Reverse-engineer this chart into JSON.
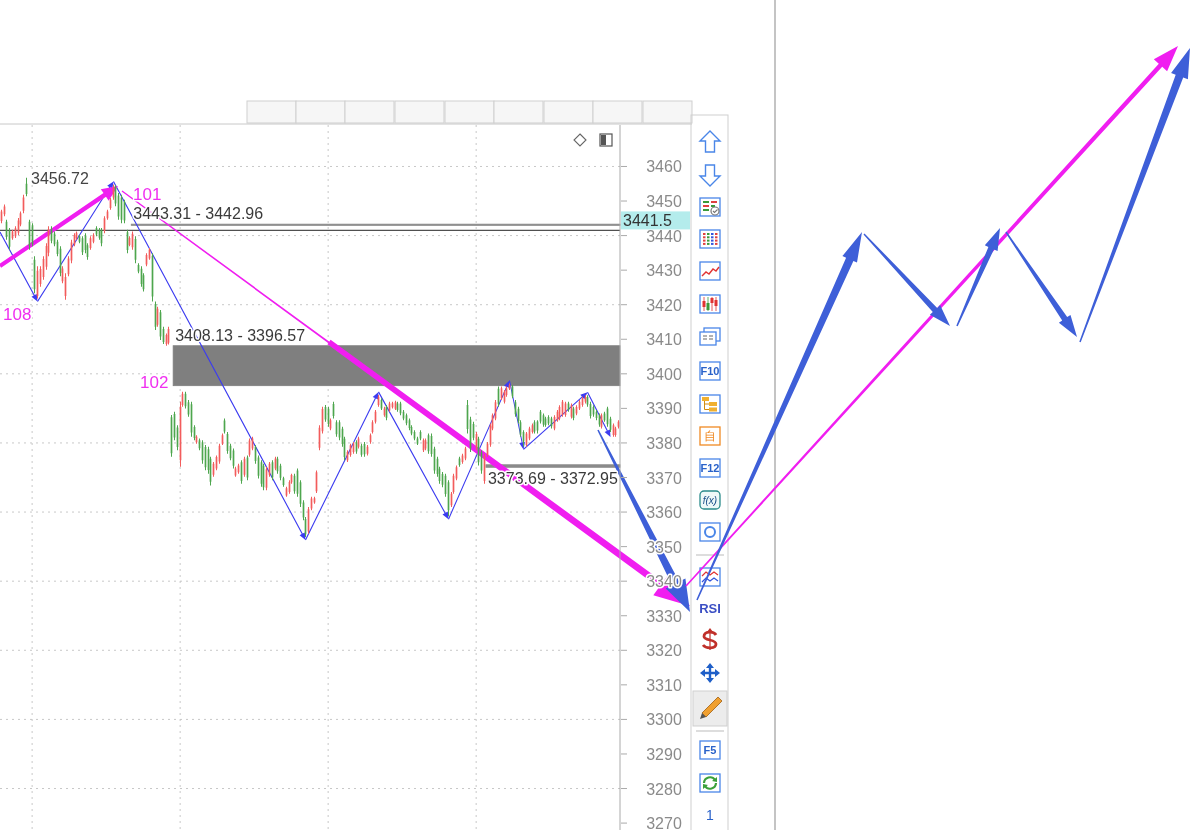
{
  "chart_data": {
    "type": "candlestick",
    "categories": [
      null,
      null,
      null,
      null,
      null,
      null,
      null,
      null,
      null,
      null,
      null,
      null,
      null,
      null,
      null,
      null,
      null,
      null,
      null,
      null,
      null,
      null,
      null,
      null,
      null,
      null,
      null,
      null,
      null,
      null,
      null,
      null,
      null,
      null,
      null,
      null,
      null,
      null,
      null,
      null,
      null,
      null,
      null,
      null,
      null,
      null,
      null,
      null,
      null,
      null,
      null,
      null,
      null,
      null,
      null,
      null,
      null,
      null,
      null,
      null,
      null,
      null,
      null,
      null,
      null,
      null,
      null,
      null,
      null,
      null,
      null,
      null,
      null,
      null,
      null,
      null,
      null,
      null,
      null,
      null,
      null,
      null,
      null,
      null,
      null,
      null,
      null,
      null,
      null,
      null,
      null,
      null,
      null,
      null,
      null,
      null,
      null,
      null,
      null,
      null,
      null,
      null,
      null,
      null,
      null,
      null,
      null,
      null,
      null,
      null,
      null,
      null,
      null,
      null,
      null,
      null,
      null,
      null,
      null,
      null,
      null,
      null,
      null,
      null,
      null,
      null,
      null,
      null,
      null,
      null,
      null,
      null,
      null,
      null,
      null,
      null,
      null,
      null,
      null,
      null,
      null,
      null,
      null,
      null,
      null,
      null,
      null,
      null,
      null,
      null,
      null,
      null,
      null,
      null,
      null,
      null,
      null,
      null,
      null,
      null,
      null,
      null,
      null,
      null,
      null,
      null,
      null,
      null,
      null,
      null,
      null,
      null,
      null,
      null,
      null,
      null,
      null,
      null,
      null,
      null,
      null,
      null,
      null,
      null,
      null,
      null,
      null,
      null,
      null,
      null,
      null,
      null,
      null,
      null,
      null,
      null,
      null,
      null,
      null,
      null,
      null,
      null,
      null,
      null,
      null,
      null,
      null,
      null,
      null,
      null,
      null,
      null,
      null,
      null,
      null,
      null,
      null,
      null,
      null,
      null,
      null,
      null
    ],
    "ohlc": [
      [
        3444.2,
        3447.5,
        3443.6,
        3447.0
      ],
      [
        3446.2,
        3449.0,
        3445.6,
        3448.4
      ],
      [
        3444.0,
        3444.6,
        3438.8,
        3439.6
      ],
      [
        3441.5,
        3442.2,
        3435.9,
        3436.8
      ],
      [
        3439.2,
        3441.7,
        3438.8,
        3441.2
      ],
      [
        3439.8,
        3442.7,
        3439.3,
        3442.1
      ],
      [
        3440.8,
        3445.1,
        3440.2,
        3444.4
      ],
      [
        3443.2,
        3447.0,
        3442.7,
        3446.5
      ],
      [
        3447.2,
        3451.8,
        3446.5,
        3451.0
      ],
      [
        3455.0,
        3456.72,
        3451.4,
        3452.0
      ],
      [
        3444.0,
        3444.6,
        3435.9,
        3437.0
      ],
      [
        3443.0,
        3443.6,
        3436.9,
        3437.6
      ],
      [
        3433.0,
        3434.0,
        3423.3,
        3424.5
      ],
      [
        3422.5,
        3431.1,
        3421.8,
        3429.8
      ],
      [
        3426.0,
        3431.1,
        3425.2,
        3430.3
      ],
      [
        3428.0,
        3434.0,
        3427.2,
        3433.2
      ],
      [
        3431.0,
        3437.8,
        3430.1,
        3437.0
      ],
      [
        3435.0,
        3442.7,
        3434.0,
        3441.8
      ],
      [
        3442.0,
        3442.7,
        3437.8,
        3438.5
      ],
      [
        3440.6,
        3441.2,
        3436.9,
        3437.5
      ],
      [
        3438.2,
        3438.8,
        3434.0,
        3434.7
      ],
      [
        3436.2,
        3436.9,
        3428.2,
        3429.2
      ],
      [
        3426.8,
        3431.1,
        3426.2,
        3430.5
      ],
      [
        3422.5,
        3429.1,
        3421.4,
        3428.0
      ],
      [
        3428.8,
        3434.0,
        3428.2,
        3433.4
      ],
      [
        3432.8,
        3438.8,
        3432.0,
        3438.0
      ],
      [
        3437.4,
        3440.7,
        3436.9,
        3440.2
      ],
      [
        3439.2,
        3441.2,
        3438.8,
        3440.8
      ],
      [
        3439.8,
        3440.2,
        3437.8,
        3438.2
      ],
      [
        3439.2,
        3439.8,
        3434.4,
        3435.2
      ],
      [
        3440.0,
        3440.7,
        3434.9,
        3435.8
      ],
      [
        3437.2,
        3437.8,
        3433.0,
        3433.8
      ],
      [
        3436.4,
        3439.8,
        3435.9,
        3439.2
      ],
      [
        3438.2,
        3440.7,
        3437.8,
        3440.2
      ],
      [
        3442.2,
        3442.7,
        3439.8,
        3440.3
      ],
      [
        3441.7,
        3442.2,
        3438.8,
        3439.4
      ],
      [
        3441.5,
        3442.2,
        3436.9,
        3437.8
      ],
      [
        3441.3,
        3445.6,
        3440.7,
        3445.0
      ],
      [
        3445.0,
        3447.5,
        3444.6,
        3447.0
      ],
      [
        3448.0,
        3450.9,
        3447.5,
        3450.4
      ],
      [
        3451.0,
        3454.8,
        3450.4,
        3454.0
      ],
      [
        3454.2,
        3454.6,
        3448.5,
        3449.3
      ],
      [
        3451.6,
        3452.3,
        3444.6,
        3445.5
      ],
      [
        3451.0,
        3451.8,
        3443.6,
        3444.6
      ],
      [
        3449.8,
        3450.4,
        3443.6,
        3444.4
      ],
      [
        3441.0,
        3441.7,
        3434.9,
        3435.8
      ],
      [
        3437.3,
        3439.8,
        3436.9,
        3439.3
      ],
      [
        3436.6,
        3441.2,
        3435.9,
        3440.5
      ],
      [
        3439.0,
        3439.8,
        3432.0,
        3433.0
      ],
      [
        3431.5,
        3432.0,
        3429.1,
        3429.6
      ],
      [
        3430.4,
        3431.1,
        3425.2,
        3426.0
      ],
      [
        3428.5,
        3429.1,
        3423.8,
        3424.5
      ],
      [
        3431.6,
        3434.9,
        3431.1,
        3434.4
      ],
      [
        3433.4,
        3436.4,
        3433.0,
        3436.0
      ],
      [
        3434.2,
        3434.9,
        3420.9,
        3422.4
      ],
      [
        3420.2,
        3420.9,
        3412.7,
        3413.6
      ],
      [
        3414.2,
        3419.4,
        3413.6,
        3418.8
      ],
      [
        3417.8,
        3418.5,
        3409.8,
        3410.8
      ],
      [
        3413.0,
        3413.6,
        3408.6,
        3409.2
      ],
      [
        3408.6,
        3411.7,
        3408.13,
        3411.2
      ],
      [
        3409.0,
        3413.6,
        3408.5,
        3413.0
      ],
      [
        3387.4,
        3388.1,
        3376.0,
        3377.0
      ],
      [
        3388.4,
        3389.0,
        3380.8,
        3381.6
      ],
      [
        3384.5,
        3385.1,
        3377.9,
        3378.8
      ],
      [
        3375.0,
        3391.9,
        3373.1,
        3390.5
      ],
      [
        3391.0,
        3394.8,
        3390.5,
        3394.2
      ],
      [
        3394.2,
        3394.8,
        3390.0,
        3390.6
      ],
      [
        3391.8,
        3392.4,
        3387.6,
        3388.2
      ],
      [
        3391.2,
        3391.9,
        3381.8,
        3383.0
      ],
      [
        3384.6,
        3385.1,
        3380.8,
        3381.4
      ],
      [
        3380.2,
        3382.2,
        3379.8,
        3381.8
      ],
      [
        3380.8,
        3381.3,
        3377.9,
        3378.5
      ],
      [
        3380.2,
        3380.8,
        3374.0,
        3375.0
      ],
      [
        3378.8,
        3379.4,
        3372.1,
        3373.0
      ],
      [
        3378.2,
        3378.9,
        3371.1,
        3372.2
      ],
      [
        3375.4,
        3376.0,
        3367.7,
        3368.8
      ],
      [
        3370.8,
        3374.5,
        3370.2,
        3374.0
      ],
      [
        3372.6,
        3376.4,
        3372.1,
        3375.9
      ],
      [
        3374.6,
        3379.8,
        3374.0,
        3379.2
      ],
      [
        3379.8,
        3382.7,
        3379.4,
        3382.2
      ],
      [
        3386.5,
        3387.1,
        3382.7,
        3383.3
      ],
      [
        3382.6,
        3383.2,
        3376.9,
        3377.7
      ],
      [
        3379.2,
        3379.8,
        3375.0,
        3375.6
      ],
      [
        3377.8,
        3378.4,
        3372.6,
        3373.4
      ],
      [
        3370.6,
        3373.1,
        3370.2,
        3372.6
      ],
      [
        3371.5,
        3374.0,
        3371.1,
        3373.5
      ],
      [
        3374.4,
        3375.0,
        3368.2,
        3369.0
      ],
      [
        3370.8,
        3376.0,
        3370.2,
        3375.4
      ],
      [
        3375.8,
        3376.4,
        3369.2,
        3370.0
      ],
      [
        3376.6,
        3381.3,
        3376.0,
        3380.7
      ],
      [
        3378.4,
        3381.8,
        3377.9,
        3381.3
      ],
      [
        3378.8,
        3379.4,
        3374.0,
        3374.8
      ],
      [
        3375.8,
        3376.4,
        3369.7,
        3370.5
      ],
      [
        3374.4,
        3375.0,
        3367.3,
        3368.2
      ],
      [
        3373.4,
        3374.0,
        3366.3,
        3367.2
      ],
      [
        3367.0,
        3373.1,
        3366.3,
        3372.4
      ],
      [
        3370.8,
        3374.5,
        3370.2,
        3374.0
      ],
      [
        3374.4,
        3375.0,
        3369.2,
        3370.0
      ],
      [
        3372.6,
        3376.0,
        3372.1,
        3375.5
      ],
      [
        3375.4,
        3376.0,
        3371.1,
        3371.8
      ],
      [
        3373.4,
        3374.0,
        3369.2,
        3369.9
      ],
      [
        3369.8,
        3370.2,
        3367.3,
        3367.8
      ],
      [
        3364.8,
        3367.3,
        3364.4,
        3366.9
      ],
      [
        3365.8,
        3369.2,
        3365.3,
        3368.7
      ],
      [
        3368.6,
        3371.1,
        3368.2,
        3370.7
      ],
      [
        3370.5,
        3371.1,
        3365.3,
        3366.0
      ],
      [
        3372.0,
        3372.6,
        3364.4,
        3365.3
      ],
      [
        3368.6,
        3369.2,
        3361.5,
        3362.4
      ],
      [
        3362.8,
        3363.4,
        3357.6,
        3358.4
      ],
      [
        3358.0,
        3358.6,
        3352.8,
        3353.6
      ],
      [
        3354.4,
        3361.5,
        3353.7,
        3360.8
      ],
      [
        3361.0,
        3364.4,
        3360.5,
        3363.9
      ],
      [
        3362.8,
        3364.4,
        3362.4,
        3364.0
      ],
      [
        3366.0,
        3372.0,
        3365.5,
        3371.5
      ],
      [
        3378.6,
        3385.1,
        3377.9,
        3384.4
      ],
      [
        3383.4,
        3390.5,
        3382.7,
        3389.8
      ],
      [
        3390.4,
        3391.0,
        3386.1,
        3386.8
      ],
      [
        3389.9,
        3390.5,
        3384.7,
        3385.5
      ],
      [
        3384.2,
        3387.1,
        3383.7,
        3386.6
      ],
      [
        3391.3,
        3391.9,
        3387.1,
        3387.8
      ],
      [
        3386.0,
        3386.6,
        3381.8,
        3382.5
      ],
      [
        3386.0,
        3386.6,
        3380.8,
        3381.6
      ],
      [
        3384.1,
        3384.7,
        3378.9,
        3379.7
      ],
      [
        3381.2,
        3381.8,
        3375.0,
        3375.9
      ],
      [
        3375.0,
        3377.9,
        3374.5,
        3377.4
      ],
      [
        3376.5,
        3379.8,
        3376.0,
        3379.3
      ],
      [
        3377.4,
        3380.3,
        3376.9,
        3379.8
      ],
      [
        3380.2,
        3380.8,
        3376.9,
        3377.5
      ],
      [
        3378.9,
        3381.8,
        3378.4,
        3381.3
      ],
      [
        3379.2,
        3379.8,
        3376.0,
        3376.6
      ],
      [
        3379.7,
        3380.3,
        3376.0,
        3376.7
      ],
      [
        3376.9,
        3379.4,
        3376.4,
        3378.9
      ],
      [
        3380.3,
        3382.7,
        3379.8,
        3382.2
      ],
      [
        3383.2,
        3386.6,
        3382.7,
        3386.0
      ],
      [
        3386.1,
        3389.5,
        3385.6,
        3389.0
      ],
      [
        3391.0,
        3393.9,
        3390.5,
        3393.4
      ],
      [
        3392.4,
        3392.9,
        3389.5,
        3390.0
      ],
      [
        3388.0,
        3390.5,
        3387.6,
        3390.0
      ],
      [
        3390.4,
        3391.0,
        3386.6,
        3387.3
      ],
      [
        3389.4,
        3391.9,
        3389.0,
        3391.4
      ],
      [
        3390.3,
        3391.9,
        3390.0,
        3391.5
      ],
      [
        3389.9,
        3392.2,
        3389.5,
        3391.8
      ],
      [
        3391.4,
        3391.9,
        3389.0,
        3389.5
      ],
      [
        3391.4,
        3391.9,
        3388.0,
        3388.6
      ],
      [
        3389.0,
        3389.5,
        3386.6,
        3387.1
      ],
      [
        3388.0,
        3388.5,
        3385.1,
        3385.7
      ],
      [
        3386.6,
        3387.1,
        3383.7,
        3384.3
      ],
      [
        3384.6,
        3385.1,
        3382.2,
        3382.7
      ],
      [
        3383.2,
        3383.7,
        3380.8,
        3381.3
      ],
      [
        3381.3,
        3381.8,
        3379.4,
        3379.8
      ],
      [
        3383.2,
        3383.7,
        3380.8,
        3381.3
      ],
      [
        3377.9,
        3381.3,
        3377.4,
        3380.8
      ],
      [
        3378.4,
        3381.3,
        3377.9,
        3380.8
      ],
      [
        3382.2,
        3382.7,
        3376.9,
        3377.6
      ],
      [
        3382.0,
        3382.7,
        3376.0,
        3376.8
      ],
      [
        3378.3,
        3378.9,
        3371.1,
        3372.0
      ],
      [
        3375.4,
        3376.0,
        3370.2,
        3371.0
      ],
      [
        3372.5,
        3373.1,
        3368.2,
        3369.0
      ],
      [
        3371.0,
        3371.6,
        3367.2,
        3367.9
      ],
      [
        3370.5,
        3371.1,
        3364.4,
        3365.2
      ],
      [
        3368.6,
        3369.2,
        3358.8,
        3360.5
      ],
      [
        3362.0,
        3365.8,
        3361.5,
        3365.3
      ],
      [
        3365.8,
        3371.1,
        3365.3,
        3370.5
      ],
      [
        3369.7,
        3373.5,
        3369.2,
        3373.0
      ],
      [
        3375.5,
        3376.0,
        3373.1,
        3373.6
      ],
      [
        3374.5,
        3376.9,
        3374.0,
        3376.4
      ],
      [
        3375.5,
        3378.9,
        3375.0,
        3378.4
      ],
      [
        3391.0,
        3392.4,
        3382.7,
        3384.0
      ],
      [
        3386.8,
        3387.6,
        3377.4,
        3378.4
      ],
      [
        3385.5,
        3386.1,
        3380.8,
        3381.5
      ],
      [
        3378.5,
        3383.2,
        3377.9,
        3382.6
      ],
      [
        3381.2,
        3381.8,
        3373.5,
        3374.4
      ],
      [
        3377.3,
        3377.9,
        3371.1,
        3372.0
      ],
      [
        3369.0,
        3376.9,
        3368.2,
        3376.2
      ],
      [
        3376.5,
        3380.3,
        3376.0,
        3379.8
      ],
      [
        3379.5,
        3385.6,
        3378.9,
        3385.0
      ],
      [
        3384.2,
        3388.5,
        3383.7,
        3388.0
      ],
      [
        3387.1,
        3392.4,
        3386.6,
        3391.8
      ],
      [
        3395.7,
        3396.3,
        3390.5,
        3391.2
      ],
      [
        3392.9,
        3396.3,
        3392.4,
        3395.8
      ],
      [
        3391.9,
        3395.3,
        3391.4,
        3394.8
      ],
      [
        3393.9,
        3396.3,
        3393.4,
        3395.8
      ],
      [
        3395.7,
        3397.2,
        3395.3,
        3396.8
      ],
      [
        3396.3,
        3396.8,
        3392.9,
        3393.5
      ],
      [
        3391.8,
        3392.4,
        3387.6,
        3388.3
      ],
      [
        3389.9,
        3390.5,
        3385.6,
        3386.3
      ],
      [
        3386.0,
        3386.6,
        3381.8,
        3382.4
      ],
      [
        3383.2,
        3383.7,
        3379.0,
        3380.4
      ],
      [
        3379.4,
        3383.2,
        3378.9,
        3382.7
      ],
      [
        3381.3,
        3384.7,
        3380.8,
        3384.2
      ],
      [
        3383.2,
        3385.6,
        3382.7,
        3385.1
      ],
      [
        3386.0,
        3386.6,
        3382.7,
        3383.3
      ],
      [
        3386.2,
        3386.6,
        3382.7,
        3383.6
      ],
      [
        3389.0,
        3389.5,
        3385.6,
        3386.2
      ],
      [
        3388.0,
        3388.5,
        3384.7,
        3385.3
      ],
      [
        3387.1,
        3387.6,
        3384.7,
        3385.2
      ],
      [
        3387.5,
        3388.0,
        3385.1,
        3385.6
      ],
      [
        3387.1,
        3387.6,
        3384.2,
        3384.8
      ],
      [
        3384.2,
        3388.0,
        3383.7,
        3387.5
      ],
      [
        3386.6,
        3389.5,
        3386.1,
        3389.0
      ],
      [
        3387.1,
        3390.9,
        3386.6,
        3390.4
      ],
      [
        3388.1,
        3392.4,
        3387.6,
        3391.9
      ],
      [
        3388.1,
        3391.9,
        3387.6,
        3391.4
      ],
      [
        3391.4,
        3391.9,
        3389.0,
        3389.5
      ],
      [
        3387.6,
        3391.4,
        3387.1,
        3390.9
      ],
      [
        3390.0,
        3390.5,
        3386.6,
        3387.2
      ],
      [
        3388.5,
        3390.9,
        3388.0,
        3390.4
      ],
      [
        3390.0,
        3392.4,
        3389.5,
        3391.9
      ],
      [
        3391.0,
        3393.4,
        3390.5,
        3392.9
      ],
      [
        3391.9,
        3393.8,
        3391.4,
        3393.3
      ],
      [
        3393.3,
        3393.8,
        3390.5,
        3391.1
      ],
      [
        3391.3,
        3391.9,
        3387.1,
        3387.8
      ],
      [
        3390.4,
        3390.9,
        3387.6,
        3388.2
      ],
      [
        3389.0,
        3389.5,
        3386.6,
        3387.2
      ],
      [
        3388.0,
        3388.5,
        3384.7,
        3385.3
      ],
      [
        3384.7,
        3388.5,
        3384.2,
        3388.0
      ],
      [
        3388.5,
        3389.0,
        3386.1,
        3386.6
      ],
      [
        3390.0,
        3390.5,
        3384.7,
        3385.4
      ],
      [
        3387.0,
        3387.6,
        3383.2,
        3383.8
      ],
      [
        3382.3,
        3385.6,
        3381.8,
        3385.1
      ],
      [
        3382.3,
        3384.7,
        3381.8,
        3384.2
      ],
      [
        3384.7,
        3386.6,
        3384.2,
        3386.1
      ]
    ],
    "ylim": [
      3268,
      3472
    ],
    "yticks": [
      3270,
      3280,
      3290,
      3300,
      3310,
      3320,
      3330,
      3340,
      3350,
      3360,
      3370,
      3380,
      3390,
      3400,
      3410,
      3420,
      3430,
      3440,
      3450,
      3460
    ],
    "grid": true,
    "tick_labels": "y",
    "ref_lines": [
      {
        "axis": "y",
        "value": 3441.5,
        "label": "3441.5",
        "color": "#505050"
      }
    ],
    "bands": [
      {
        "axis": "y",
        "from": 3442.96,
        "to": 3443.31,
        "label": "3443.31 - 3442.96",
        "color": "#8a8a8a"
      },
      {
        "axis": "y",
        "from": 3396.57,
        "to": 3408.13,
        "label": "3408.13 - 3396.57",
        "color": "#7f7f7f"
      },
      {
        "axis": "y",
        "from": 3372.95,
        "to": 3373.69,
        "label": "3373.69 - 3372.95",
        "color": "#8a8a8a"
      }
    ],
    "annotations": [
      "3456.72",
      "101",
      "108",
      "102",
      "F10",
      "自",
      "F12",
      "f(x)",
      "RSI",
      "F5",
      "1"
    ]
  }
}
